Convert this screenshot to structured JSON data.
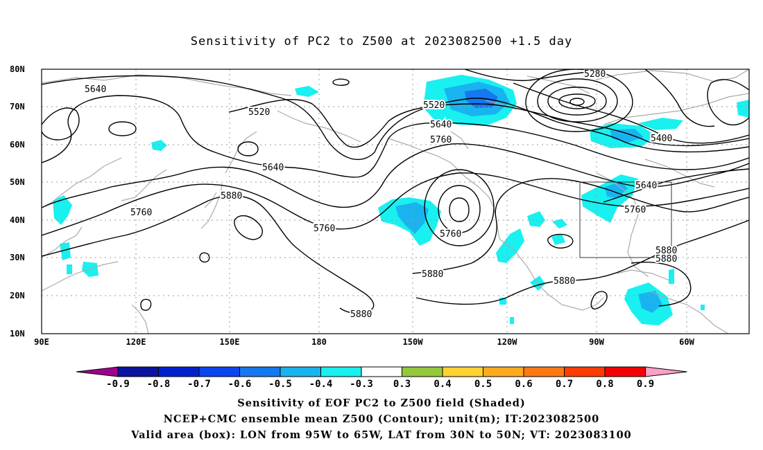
{
  "title": "Sensitivity of PC2 to Z500 at 2023082500 +1.5 day",
  "lat_labels": [
    "80N",
    "70N",
    "60N",
    "50N",
    "40N",
    "30N",
    "20N",
    "10N"
  ],
  "lon_labels": [
    "90E",
    "120E",
    "150E",
    "180",
    "150W",
    "120W",
    "90W",
    "60W"
  ],
  "contour_labels": [
    "5640",
    "5520",
    "5520",
    "5640",
    "5760",
    "5640",
    "5880",
    "5760",
    "5760",
    "5280",
    "5400",
    "5640",
    "5760",
    "5880",
    "5880",
    "5880",
    "5880",
    "5760"
  ],
  "colorbar": {
    "labels": [
      "-0.9",
      "-0.8",
      "-0.7",
      "-0.6",
      "-0.5",
      "-0.4",
      "-0.3",
      "0.3",
      "0.4",
      "0.5",
      "0.6",
      "0.7",
      "0.8",
      "0.9"
    ],
    "colors": [
      "#a0008c",
      "#0a14a0",
      "#0020d0",
      "#0a46f0",
      "#1478f0",
      "#19b4f0",
      "#19f0f0",
      "#ffffff",
      "#96c83c",
      "#ffd232",
      "#ffaa1e",
      "#ff7814",
      "#ff3c00",
      "#f50000",
      "#ffa0c8"
    ]
  },
  "captions": [
    "Sensitivity of EOF PC2 to Z500 field (Shaded)",
    "NCEP+CMC ensemble mean Z500 (Contour); unit(m); IT:2023082500",
    "Valid area (box): LON from 95W to 65W, LAT from 30N to 50N; VT: 2023083100"
  ]
}
